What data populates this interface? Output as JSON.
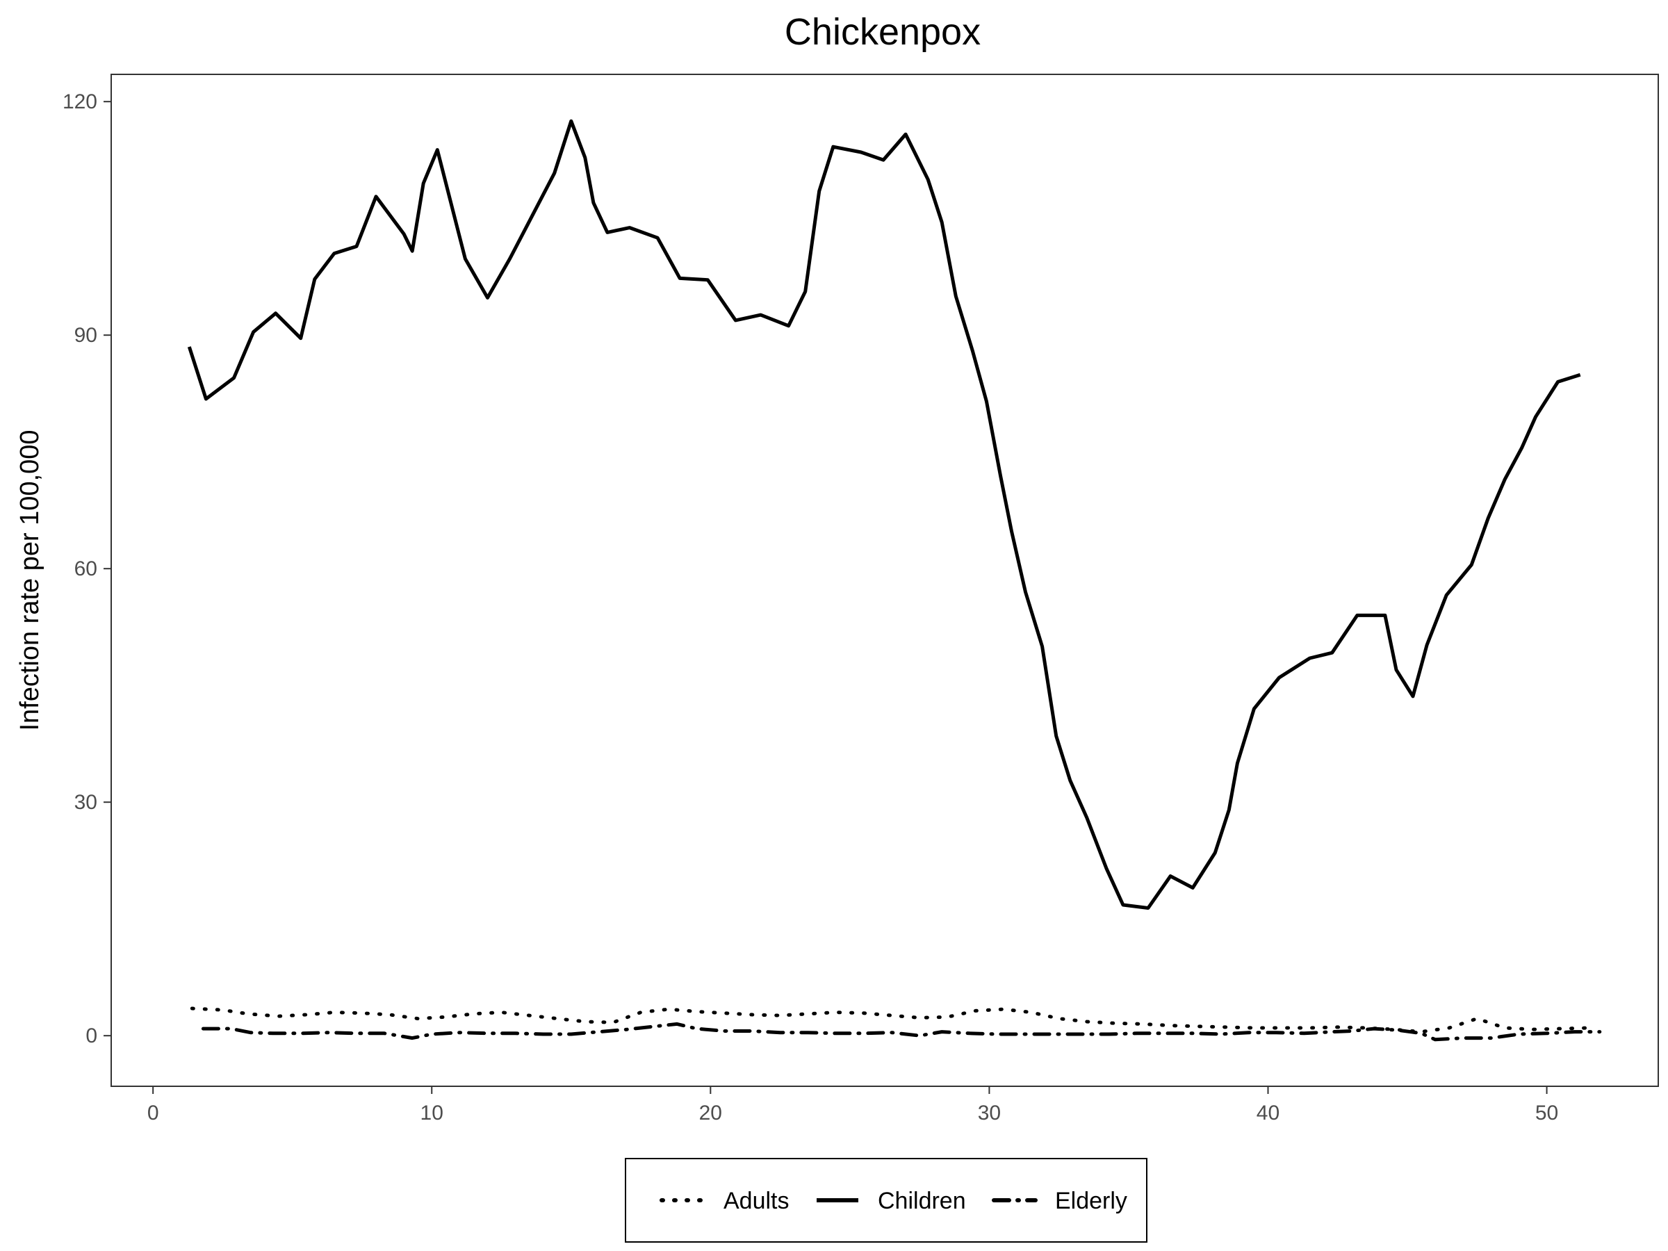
{
  "chart_data": {
    "type": "line",
    "title": "Chickenpox",
    "xlabel": "",
    "ylabel": "Infection rate per 100,000",
    "xlim": [
      -1.5,
      54
    ],
    "ylim": [
      -6.5,
      123.5
    ],
    "x_ticks": [
      0,
      10,
      20,
      30,
      40,
      50
    ],
    "y_ticks": [
      0,
      30,
      60,
      90,
      120
    ],
    "grid": false,
    "legend_position": "bottom",
    "series": [
      {
        "name": "Adults",
        "style": "dotted",
        "color": "#000000",
        "points": [
          [
            1.4,
            3.5
          ],
          [
            2.5,
            3.3
          ],
          [
            3.4,
            2.8
          ],
          [
            4.5,
            2.5
          ],
          [
            5.5,
            2.7
          ],
          [
            6.5,
            3.0
          ],
          [
            7.5,
            2.9
          ],
          [
            8.5,
            2.7
          ],
          [
            9.5,
            2.2
          ],
          [
            10.5,
            2.4
          ],
          [
            11.5,
            2.8
          ],
          [
            12.5,
            3.0
          ],
          [
            13.5,
            2.6
          ],
          [
            14.5,
            2.2
          ],
          [
            15.5,
            1.8
          ],
          [
            16.5,
            1.7
          ],
          [
            17.5,
            3.0
          ],
          [
            18.5,
            3.4
          ],
          [
            19.5,
            3.1
          ],
          [
            20.5,
            2.9
          ],
          [
            21.5,
            2.7
          ],
          [
            22.5,
            2.6
          ],
          [
            23.5,
            2.8
          ],
          [
            24.5,
            3.0
          ],
          [
            25.5,
            2.9
          ],
          [
            26.5,
            2.6
          ],
          [
            27.5,
            2.3
          ],
          [
            28.5,
            2.4
          ],
          [
            29.5,
            3.2
          ],
          [
            30.5,
            3.4
          ],
          [
            31.5,
            3.0
          ],
          [
            32.5,
            2.2
          ],
          [
            33.5,
            1.8
          ],
          [
            34.5,
            1.6
          ],
          [
            35.5,
            1.5
          ],
          [
            36.5,
            1.3
          ],
          [
            37.5,
            1.2
          ],
          [
            38.5,
            1.1
          ],
          [
            39.5,
            1.0
          ],
          [
            40.5,
            1.0
          ],
          [
            41.5,
            1.0
          ],
          [
            42.5,
            1.1
          ],
          [
            43.5,
            1.0
          ],
          [
            44.5,
            0.8
          ],
          [
            45.5,
            0.5
          ],
          [
            46.5,
            1.0
          ],
          [
            47.5,
            2.2
          ],
          [
            48.5,
            1.0
          ],
          [
            49.5,
            0.8
          ],
          [
            50.5,
            0.9
          ],
          [
            51.5,
            1.0
          ]
        ]
      },
      {
        "name": "Children",
        "style": "solid",
        "color": "#000000",
        "points": [
          [
            1.3,
            88.5
          ],
          [
            1.9,
            81.8
          ],
          [
            2.9,
            84.5
          ],
          [
            3.6,
            90.4
          ],
          [
            4.4,
            92.8
          ],
          [
            5.3,
            89.6
          ],
          [
            5.8,
            97.2
          ],
          [
            6.5,
            100.5
          ],
          [
            7.3,
            101.4
          ],
          [
            8.0,
            107.8
          ],
          [
            9.0,
            103.0
          ],
          [
            9.3,
            100.8
          ],
          [
            9.7,
            109.5
          ],
          [
            10.2,
            113.8
          ],
          [
            11.2,
            99.8
          ],
          [
            12.0,
            94.8
          ],
          [
            12.8,
            99.8
          ],
          [
            14.4,
            110.8
          ],
          [
            15.0,
            117.5
          ],
          [
            15.5,
            112.8
          ],
          [
            15.8,
            107.0
          ],
          [
            16.3,
            103.2
          ],
          [
            17.1,
            103.8
          ],
          [
            18.1,
            102.5
          ],
          [
            18.9,
            97.3
          ],
          [
            19.9,
            97.1
          ],
          [
            20.9,
            91.9
          ],
          [
            21.8,
            92.6
          ],
          [
            22.8,
            91.2
          ],
          [
            23.4,
            95.6
          ],
          [
            23.9,
            108.5
          ],
          [
            24.4,
            114.2
          ],
          [
            25.4,
            113.5
          ],
          [
            26.2,
            112.5
          ],
          [
            27.0,
            115.8
          ],
          [
            27.8,
            110.0
          ],
          [
            28.3,
            104.5
          ],
          [
            28.8,
            95.0
          ],
          [
            29.4,
            88.0
          ],
          [
            29.9,
            81.5
          ],
          [
            30.4,
            72.0
          ],
          [
            30.8,
            64.8
          ],
          [
            31.3,
            57.0
          ],
          [
            31.9,
            50.0
          ],
          [
            32.4,
            38.5
          ],
          [
            32.9,
            32.8
          ],
          [
            33.5,
            28.0
          ],
          [
            34.2,
            21.5
          ],
          [
            34.8,
            16.8
          ],
          [
            35.7,
            16.4
          ],
          [
            36.5,
            20.5
          ],
          [
            37.3,
            19.0
          ],
          [
            38.1,
            23.5
          ],
          [
            38.6,
            29.0
          ],
          [
            38.9,
            35.0
          ],
          [
            39.5,
            42.0
          ],
          [
            40.4,
            46.0
          ],
          [
            41.5,
            48.5
          ],
          [
            42.3,
            49.2
          ],
          [
            43.2,
            54.0
          ],
          [
            44.2,
            54.0
          ],
          [
            44.6,
            47.0
          ],
          [
            45.2,
            43.6
          ],
          [
            45.7,
            50.2
          ],
          [
            46.4,
            56.6
          ],
          [
            47.3,
            60.5
          ],
          [
            47.9,
            66.5
          ],
          [
            48.5,
            71.5
          ],
          [
            49.1,
            75.5
          ],
          [
            49.6,
            79.5
          ],
          [
            50.4,
            84.0
          ],
          [
            51.2,
            84.9
          ]
        ]
      },
      {
        "name": "Elderly",
        "style": "dashdot",
        "color": "#000000",
        "points": [
          [
            1.8,
            0.9
          ],
          [
            2.8,
            0.9
          ],
          [
            3.5,
            0.4
          ],
          [
            4.3,
            0.3
          ],
          [
            5.3,
            0.3
          ],
          [
            6.3,
            0.4
          ],
          [
            7.3,
            0.3
          ],
          [
            8.3,
            0.3
          ],
          [
            9.3,
            -0.3
          ],
          [
            10.0,
            0.2
          ],
          [
            11.0,
            0.4
          ],
          [
            12.0,
            0.3
          ],
          [
            13.0,
            0.3
          ],
          [
            14.0,
            0.2
          ],
          [
            15.0,
            0.2
          ],
          [
            16.0,
            0.5
          ],
          [
            17.0,
            0.8
          ],
          [
            18.0,
            1.2
          ],
          [
            18.8,
            1.5
          ],
          [
            19.5,
            0.9
          ],
          [
            20.5,
            0.6
          ],
          [
            21.5,
            0.6
          ],
          [
            22.5,
            0.4
          ],
          [
            23.5,
            0.4
          ],
          [
            24.5,
            0.3
          ],
          [
            25.5,
            0.3
          ],
          [
            26.5,
            0.4
          ],
          [
            27.5,
            0.0
          ],
          [
            28.3,
            0.5
          ],
          [
            29.3,
            0.3
          ],
          [
            30.3,
            0.2
          ],
          [
            31.3,
            0.2
          ],
          [
            32.3,
            0.2
          ],
          [
            33.3,
            0.2
          ],
          [
            34.3,
            0.2
          ],
          [
            35.3,
            0.3
          ],
          [
            36.3,
            0.3
          ],
          [
            37.3,
            0.3
          ],
          [
            38.3,
            0.2
          ],
          [
            39.3,
            0.4
          ],
          [
            40.3,
            0.4
          ],
          [
            41.3,
            0.3
          ],
          [
            42.3,
            0.5
          ],
          [
            43.0,
            0.6
          ],
          [
            43.8,
            0.9
          ],
          [
            44.7,
            0.7
          ],
          [
            45.5,
            0.3
          ],
          [
            46.0,
            -0.5
          ],
          [
            47.0,
            -0.3
          ],
          [
            48.0,
            -0.3
          ],
          [
            49.0,
            0.2
          ],
          [
            50.0,
            0.3
          ],
          [
            51.0,
            0.5
          ],
          [
            51.9,
            0.5
          ]
        ]
      }
    ]
  }
}
